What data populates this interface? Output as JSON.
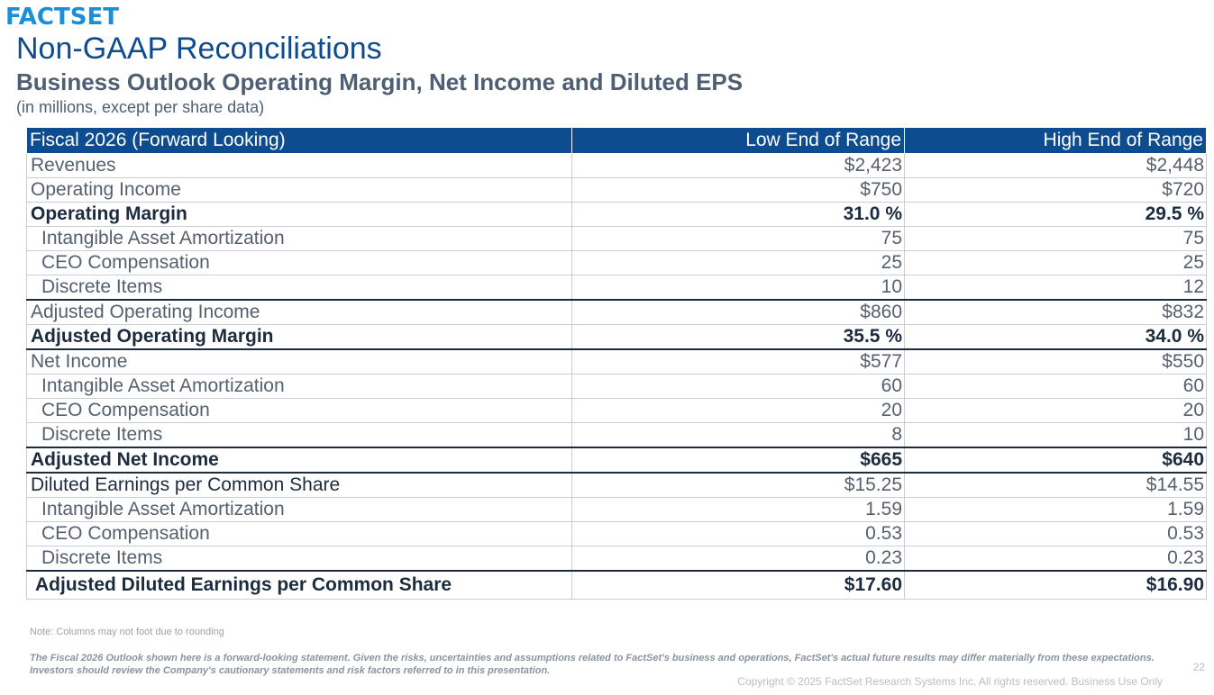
{
  "header": {
    "logo": "FACTSET",
    "title": "Non-GAAP Reconciliations",
    "subtitle": "Business Outlook Operating Margin, Net Income and Diluted EPS",
    "units": "(in millions, except per share data)"
  },
  "colors": {
    "brand_blue": "#0d4c8f",
    "logo_blue": "#1b8fd6"
  },
  "table": {
    "headers": [
      "Fiscal 2026 (Forward Looking)",
      "Low End of Range",
      "High End of Range"
    ],
    "rows": [
      {
        "label": "Revenues",
        "low": "$2,423",
        "high": "$2,448"
      },
      {
        "label": "Operating Income",
        "low": "$750",
        "high": "$720"
      },
      {
        "label": "Operating Margin",
        "low": "31.0 %",
        "high": "29.5 %"
      },
      {
        "label": "Intangible Asset Amortization",
        "low": "75",
        "high": "75"
      },
      {
        "label": "CEO Compensation",
        "low": "25",
        "high": "25"
      },
      {
        "label": "Discrete Items",
        "low": "10",
        "high": "12"
      },
      {
        "label": "Adjusted Operating Income",
        "low": "$860",
        "high": "$832"
      },
      {
        "label": "Adjusted Operating Margin",
        "low": "35.5 %",
        "high": "34.0 %"
      },
      {
        "label": "Net Income",
        "low": "$577",
        "high": "$550"
      },
      {
        "label": "Intangible Asset Amortization",
        "low": "60",
        "high": "60"
      },
      {
        "label": "CEO Compensation",
        "low": "20",
        "high": "20"
      },
      {
        "label": "Discrete Items",
        "low": "8",
        "high": "10"
      },
      {
        "label": "Adjusted Net Income",
        "low": "$665",
        "high": "$640"
      },
      {
        "label": "Diluted Earnings per Common Share",
        "low": "$15.25",
        "high": "$14.55"
      },
      {
        "label": "Intangible Asset Amortization",
        "low": "1.59",
        "high": "1.59"
      },
      {
        "label": "CEO Compensation",
        "low": "0.53",
        "high": "0.53"
      },
      {
        "label": "Discrete Items",
        "low": "0.23",
        "high": "0.23"
      },
      {
        "label": "Adjusted Diluted Earnings per Common Share",
        "low": "$17.60",
        "high": "$16.90"
      }
    ]
  },
  "footer": {
    "note": "Note: Columns may not foot due to rounding",
    "disclaimer": "The Fiscal 2026 Outlook shown here is a forward-looking statement.   Given the risks, uncertainties and assumptions related to FactSet's business and operations, FactSet's actual future results may differ materially from these expectations. Investors should review the Company's cautionary statements and risk factors referred to in this presentation.",
    "page_number": "22",
    "copyright": "Copyright © 2025 FactSet Research Systems Inc. All rights reserved. Business Use Only"
  }
}
